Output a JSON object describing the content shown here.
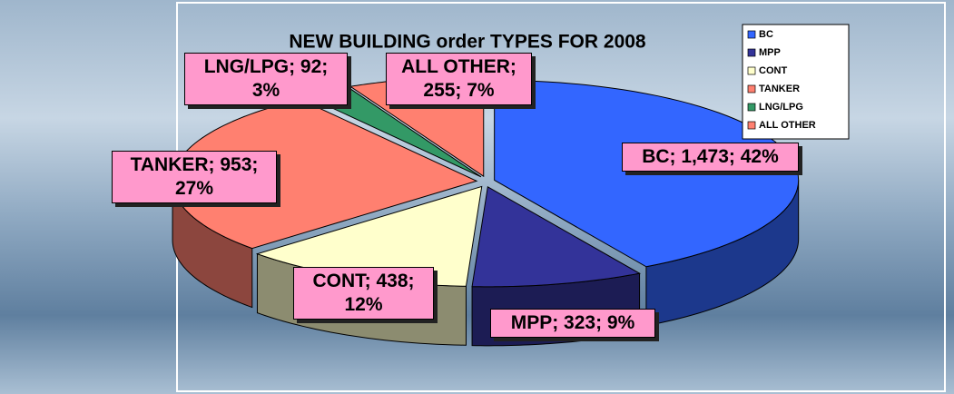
{
  "chart_data": {
    "type": "pie3d",
    "title": "NEW BUILDING order TYPES FOR 2008",
    "categories": [
      "BC",
      "MPP",
      "CONT",
      "TANKER",
      "LNG/LPG",
      "ALL OTHER"
    ],
    "values": [
      1473,
      323,
      438,
      953,
      92,
      255
    ],
    "value_labels": [
      "BC; 1,473; 42%",
      "MPP; 323; 9%",
      "CONT; 438; 12%",
      "TANKER; 953; 27%",
      "LNG/LPG; 92; 3%",
      "ALL OTHER; 255; 7%"
    ],
    "colors": [
      "#3366ff",
      "#333399",
      "#ffffcc",
      "#ff8070",
      "#339966",
      "#ff8070"
    ],
    "legend": "top-right"
  }
}
